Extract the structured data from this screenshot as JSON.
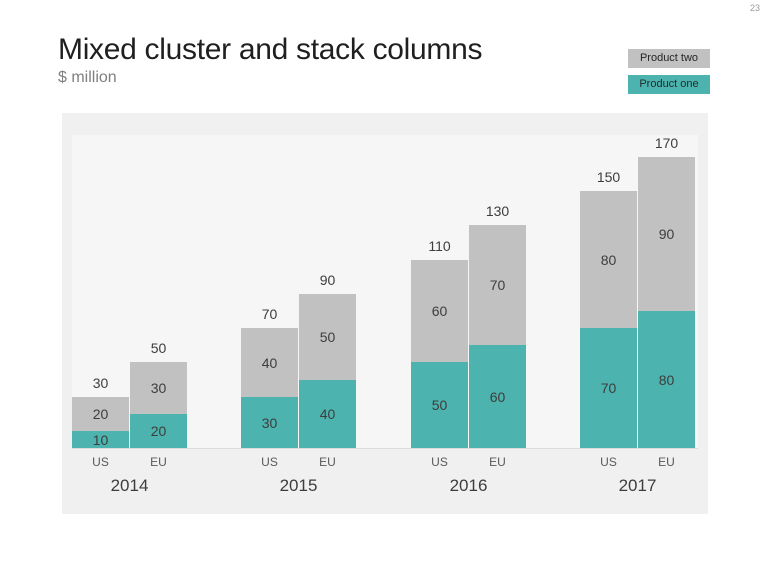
{
  "slide": {
    "page_number": "23",
    "title": "Mixed cluster and stack columns",
    "subtitle": "$ million"
  },
  "legend": {
    "position": "top-right",
    "items": [
      {
        "label": "Product two",
        "color": "#c1c1c1",
        "text_color": "#262626"
      },
      {
        "label": "Product one",
        "color": "#4db3ae",
        "text_color": "#1e2a2a"
      }
    ]
  },
  "chart_data": {
    "type": "bar",
    "subtype": "clustered-stacked-columns",
    "title": "Mixed cluster and stack columns",
    "unit_label": "$ million",
    "categories": [
      "2014",
      "2015",
      "2016",
      "2017"
    ],
    "cluster_labels": [
      "US",
      "EU"
    ],
    "series": [
      {
        "name": "Product one",
        "color": "#4db3ae",
        "values": [
          [
            10,
            20
          ],
          [
            30,
            40
          ],
          [
            50,
            60
          ],
          [
            70,
            80
          ]
        ]
      },
      {
        "name": "Product two",
        "color": "#c1c1c1",
        "values": [
          [
            20,
            30
          ],
          [
            40,
            50
          ],
          [
            60,
            70
          ],
          [
            80,
            90
          ]
        ]
      }
    ],
    "totals": [
      [
        30,
        50
      ],
      [
        70,
        90
      ],
      [
        110,
        130
      ],
      [
        150,
        170
      ]
    ],
    "ylim": [
      0,
      180
    ],
    "gridlines": false,
    "value_labels": "segment values inside bars, totals above bars",
    "legend_position": "top-right",
    "panel_background": "#f0f0f0",
    "plot_background": "#f6f6f6"
  }
}
